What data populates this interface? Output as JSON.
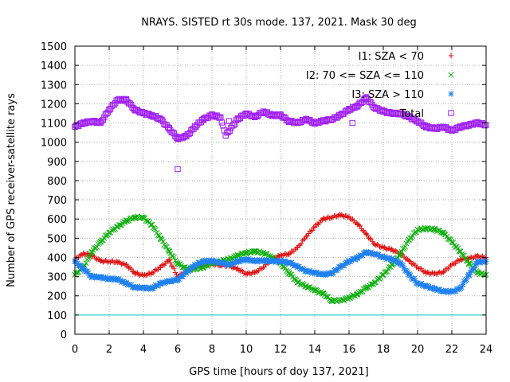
{
  "chart_data": {
    "type": "scatter",
    "title": "NRAYS. SISTED rt 30s mode. 137, 2021. Mask 30 deg",
    "xlabel": "GPS time [hours of doy 137, 2021]",
    "ylabel": "Number of GPS receiver-satellite rays",
    "xlim": [
      0,
      24
    ],
    "ylim": [
      0,
      1500
    ],
    "xticks": [
      0,
      2,
      4,
      6,
      8,
      10,
      12,
      14,
      16,
      18,
      20,
      22,
      24
    ],
    "yticks": [
      0,
      100,
      200,
      300,
      400,
      500,
      600,
      700,
      800,
      900,
      1000,
      1100,
      1200,
      1300,
      1400,
      1500
    ],
    "grid": true,
    "legend_position": "top-right",
    "threshold": {
      "value": 100,
      "color": "#00c0c0"
    },
    "series": [
      {
        "name": "I1: SZA < 70",
        "marker": "+",
        "color": "#e01010",
        "points": [
          [
            0,
            390
          ],
          [
            0.5,
            420
          ],
          [
            1,
            410
          ],
          [
            1.5,
            380
          ],
          [
            2,
            380
          ],
          [
            2.5,
            375
          ],
          [
            3,
            360
          ],
          [
            3.5,
            320
          ],
          [
            4,
            305
          ],
          [
            4.5,
            320
          ],
          [
            5,
            350
          ],
          [
            5.5,
            385
          ],
          [
            6,
            300
          ],
          [
            6.5,
            330
          ],
          [
            7,
            350
          ],
          [
            7.5,
            360
          ],
          [
            8,
            365
          ],
          [
            8.5,
            360
          ],
          [
            9,
            355
          ],
          [
            9.5,
            340
          ],
          [
            10,
            315
          ],
          [
            10.5,
            320
          ],
          [
            11,
            350
          ],
          [
            11.5,
            390
          ],
          [
            12,
            410
          ],
          [
            12.5,
            420
          ],
          [
            13,
            450
          ],
          [
            13.5,
            510
          ],
          [
            14,
            560
          ],
          [
            14.5,
            600
          ],
          [
            15,
            610
          ],
          [
            15.5,
            620
          ],
          [
            16,
            610
          ],
          [
            16.5,
            575
          ],
          [
            17,
            520
          ],
          [
            17.5,
            470
          ],
          [
            18,
            450
          ],
          [
            18.5,
            440
          ],
          [
            19,
            420
          ],
          [
            19.5,
            380
          ],
          [
            20,
            350
          ],
          [
            20.5,
            320
          ],
          [
            21,
            315
          ],
          [
            21.5,
            325
          ],
          [
            22,
            360
          ],
          [
            22.5,
            390
          ],
          [
            23,
            395
          ],
          [
            23.5,
            405
          ],
          [
            24,
            400
          ]
        ]
      },
      {
        "name": "I2: 70 <= SZA <= 110",
        "marker": "x",
        "color": "#10b010",
        "points": [
          [
            0,
            310
          ],
          [
            0.5,
            350
          ],
          [
            1,
            430
          ],
          [
            1.5,
            480
          ],
          [
            2,
            530
          ],
          [
            2.5,
            560
          ],
          [
            3,
            590
          ],
          [
            3.5,
            610
          ],
          [
            4,
            605
          ],
          [
            4.5,
            570
          ],
          [
            5,
            500
          ],
          [
            5.5,
            430
          ],
          [
            6,
            370
          ],
          [
            6.5,
            340
          ],
          [
            7,
            340
          ],
          [
            7.5,
            350
          ],
          [
            8,
            370
          ],
          [
            8.5,
            380
          ],
          [
            9,
            390
          ],
          [
            9.5,
            410
          ],
          [
            10,
            425
          ],
          [
            10.5,
            430
          ],
          [
            11,
            425
          ],
          [
            11.5,
            400
          ],
          [
            12,
            370
          ],
          [
            12.5,
            320
          ],
          [
            13,
            270
          ],
          [
            13.5,
            250
          ],
          [
            14,
            230
          ],
          [
            14.5,
            210
          ],
          [
            15,
            175
          ],
          [
            15.5,
            175
          ],
          [
            16,
            190
          ],
          [
            16.5,
            210
          ],
          [
            17,
            240
          ],
          [
            17.5,
            270
          ],
          [
            18,
            310
          ],
          [
            18.5,
            360
          ],
          [
            19,
            420
          ],
          [
            19.5,
            490
          ],
          [
            20,
            545
          ],
          [
            20.5,
            550
          ],
          [
            21,
            545
          ],
          [
            21.5,
            530
          ],
          [
            22,
            480
          ],
          [
            22.5,
            430
          ],
          [
            23,
            370
          ],
          [
            23.5,
            320
          ],
          [
            24,
            310
          ]
        ]
      },
      {
        "name": "I3: SZA > 110",
        "marker": "*",
        "color": "#2080f0",
        "points": [
          [
            0,
            380
          ],
          [
            0.5,
            340
          ],
          [
            1,
            300
          ],
          [
            1.5,
            295
          ],
          [
            2,
            290
          ],
          [
            2.5,
            285
          ],
          [
            3,
            265
          ],
          [
            3.5,
            245
          ],
          [
            4,
            240
          ],
          [
            4.5,
            240
          ],
          [
            5,
            265
          ],
          [
            5.5,
            275
          ],
          [
            6,
            285
          ],
          [
            6.5,
            320
          ],
          [
            7,
            360
          ],
          [
            7.5,
            380
          ],
          [
            8,
            380
          ],
          [
            8.5,
            375
          ],
          [
            9,
            360
          ],
          [
            9.5,
            380
          ],
          [
            10,
            390
          ],
          [
            10.5,
            380
          ],
          [
            11,
            385
          ],
          [
            11.5,
            380
          ],
          [
            12,
            380
          ],
          [
            12.5,
            375
          ],
          [
            13,
            350
          ],
          [
            13.5,
            330
          ],
          [
            14,
            320
          ],
          [
            14.5,
            310
          ],
          [
            15,
            320
          ],
          [
            15.5,
            350
          ],
          [
            16,
            380
          ],
          [
            16.5,
            400
          ],
          [
            17,
            425
          ],
          [
            17.5,
            420
          ],
          [
            18,
            400
          ],
          [
            18.5,
            390
          ],
          [
            19,
            370
          ],
          [
            19.5,
            310
          ],
          [
            20,
            265
          ],
          [
            20.5,
            250
          ],
          [
            21,
            235
          ],
          [
            21.5,
            225
          ],
          [
            22,
            220
          ],
          [
            22.5,
            240
          ],
          [
            23,
            310
          ],
          [
            23.5,
            375
          ],
          [
            24,
            380
          ]
        ]
      },
      {
        "name": "Total",
        "marker": "square",
        "color": "#a020f0",
        "points": [
          [
            0,
            1080
          ],
          [
            0.5,
            1100
          ],
          [
            1,
            1110
          ],
          [
            1.5,
            1100
          ],
          [
            2,
            1170
          ],
          [
            2.5,
            1220
          ],
          [
            3,
            1220
          ],
          [
            3.5,
            1170
          ],
          [
            4,
            1150
          ],
          [
            4.5,
            1140
          ],
          [
            5,
            1120
          ],
          [
            5.5,
            1070
          ],
          [
            6,
            1020
          ],
          [
            6.5,
            1030
          ],
          [
            7,
            1080
          ],
          [
            7.5,
            1120
          ],
          [
            8,
            1140
          ],
          [
            8.5,
            1130
          ],
          [
            9,
            1110
          ],
          [
            9.5,
            1120
          ],
          [
            10,
            1150
          ],
          [
            10.5,
            1130
          ],
          [
            11,
            1160
          ],
          [
            11.5,
            1140
          ],
          [
            12,
            1140
          ],
          [
            12.5,
            1110
          ],
          [
            13,
            1100
          ],
          [
            13.5,
            1120
          ],
          [
            14,
            1100
          ],
          [
            14.5,
            1110
          ],
          [
            15,
            1120
          ],
          [
            15.5,
            1140
          ],
          [
            16,
            1170
          ],
          [
            16.5,
            1190
          ],
          [
            17,
            1230
          ],
          [
            17.5,
            1180
          ],
          [
            18,
            1160
          ],
          [
            18.5,
            1150
          ],
          [
            19,
            1150
          ],
          [
            19.5,
            1130
          ],
          [
            20,
            1110
          ],
          [
            20.5,
            1080
          ],
          [
            21,
            1070
          ],
          [
            21.5,
            1080
          ],
          [
            22,
            1060
          ],
          [
            22.5,
            1080
          ],
          [
            23,
            1090
          ],
          [
            23.5,
            1100
          ],
          [
            24,
            1090
          ],
          [
            6,
            860
          ],
          [
            8.8,
            1035
          ],
          [
            16.2,
            1100
          ]
        ]
      }
    ]
  }
}
